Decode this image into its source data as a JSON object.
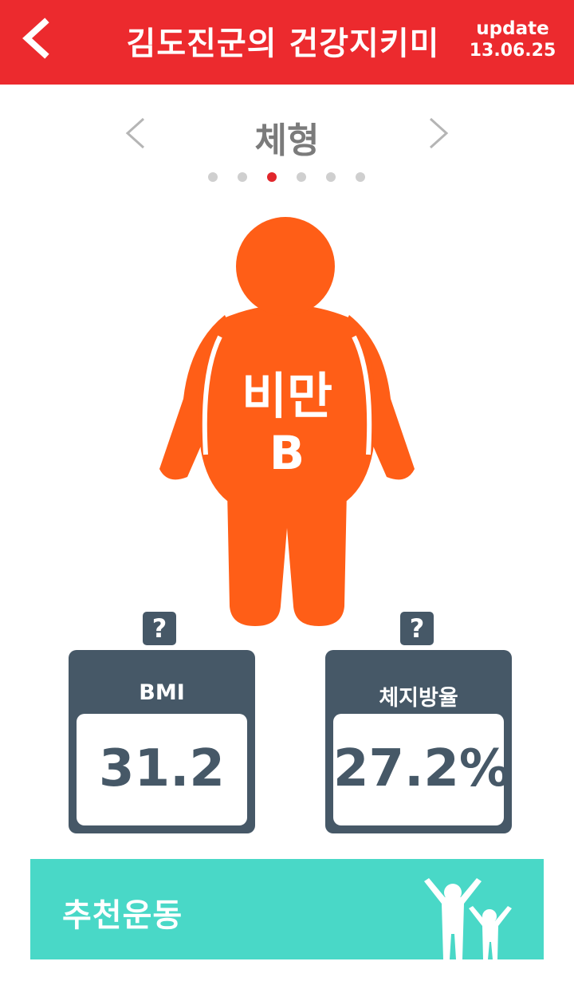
{
  "header": {
    "title": "김도진군의 건강지키미",
    "update_label": "update",
    "update_date": "13.06.25",
    "back_icon": "chevron-left-icon"
  },
  "navigator": {
    "title": "체형",
    "prev_icon": "chevron-left-icon",
    "next_icon": "chevron-right-icon",
    "page_count": 6,
    "active_page": 3
  },
  "figure": {
    "category": "비만",
    "grade": "B",
    "color": "#ff5e17"
  },
  "metrics": [
    {
      "label": "BMI",
      "value": "31.2",
      "help": "?"
    },
    {
      "label": "체지방율",
      "value": "27.2%",
      "help": "?"
    }
  ],
  "recommendation": {
    "label": "추천운동",
    "icon": "people-exercise-icon"
  },
  "colors": {
    "header": "#ec2a2e",
    "card": "#465867",
    "accent_bar": "#49d8c7",
    "dot_active": "#e1262b",
    "dot_inactive": "#cfcfcf"
  }
}
